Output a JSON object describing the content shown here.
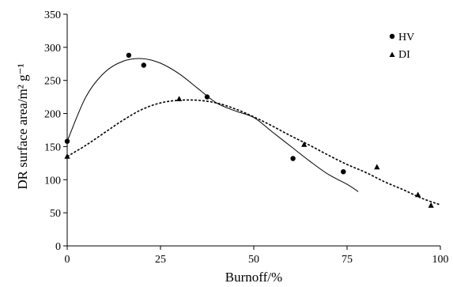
{
  "chart_data": {
    "type": "scatter",
    "xlabel": "Burnoff/%",
    "ylabel": "DR surface area/m² g⁻¹",
    "xlim": [
      0,
      100
    ],
    "ylim": [
      0,
      350
    ],
    "x_ticks": [
      "0",
      "25",
      "50",
      "75",
      "100"
    ],
    "y_ticks": [
      "0",
      "50",
      "100",
      "150",
      "200",
      "250",
      "300",
      "350"
    ],
    "grid": false,
    "legend_position": "top-right",
    "series": [
      {
        "name": "HV",
        "marker": "circle",
        "points": [
          [
            0,
            158
          ],
          [
            16.5,
            288
          ],
          [
            20.5,
            273
          ],
          [
            37.5,
            225
          ],
          [
            60.5,
            132
          ],
          [
            74,
            112
          ]
        ],
        "fit": {
          "style": "solid",
          "points": [
            [
              0,
              158
            ],
            [
              5,
              225
            ],
            [
              10,
              262
            ],
            [
              15,
              279
            ],
            [
              20,
              283
            ],
            [
              25,
              276
            ],
            [
              30,
              260
            ],
            [
              35,
              238
            ],
            [
              40,
              216
            ],
            [
              45,
              204
            ],
            [
              50,
              194
            ],
            [
              55,
              172
            ],
            [
              60,
              150
            ],
            [
              65,
              128
            ],
            [
              70,
              108
            ],
            [
              75,
              93
            ],
            [
              78,
              82
            ]
          ]
        }
      },
      {
        "name": "DI",
        "marker": "triangle",
        "points": [
          [
            0,
            135
          ],
          [
            30,
            222
          ],
          [
            63.5,
            153
          ],
          [
            83,
            119
          ],
          [
            94,
            77
          ],
          [
            97.5,
            61
          ]
        ],
        "fit": {
          "style": "dashed",
          "points": [
            [
              0,
              135
            ],
            [
              5,
              152
            ],
            [
              10,
              171
            ],
            [
              15,
              190
            ],
            [
              20,
              206
            ],
            [
              25,
              216
            ],
            [
              30,
              220
            ],
            [
              35,
              220
            ],
            [
              40,
              216
            ],
            [
              45,
              207
            ],
            [
              50,
              195
            ],
            [
              55,
              181
            ],
            [
              60,
              166
            ],
            [
              65,
              152
            ],
            [
              70,
              137
            ],
            [
              75,
              123
            ],
            [
              80,
              111
            ],
            [
              85,
              97
            ],
            [
              90,
              85
            ],
            [
              95,
              72
            ],
            [
              100,
              62
            ]
          ]
        }
      }
    ]
  }
}
